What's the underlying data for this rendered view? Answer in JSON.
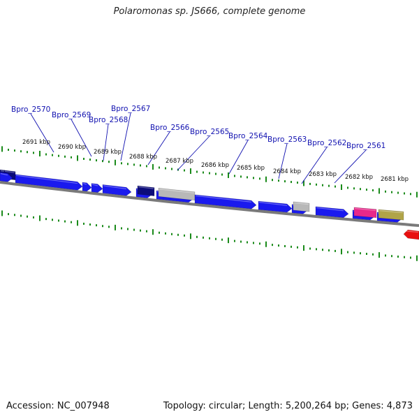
{
  "title": "Polaromonas sp. JS666, complete genome",
  "footer": {
    "accession": "Accession: NC_007948",
    "info": "Topology: circular; Length: 5,200,264 bp; Genes: 4,873"
  },
  "kbp_labels": [
    "2691 kbp",
    "2690 kbp",
    "2689 kbp",
    "2688 kbp",
    "2687 kbp",
    "2686 kbp",
    "2685 kbp",
    "2684 kbp",
    "2683 kbp",
    "2682 kbp",
    "2681 kbp"
  ],
  "gene_labels": [
    "Bpro_2570",
    "Bpro_2569",
    "Bpro_2568",
    "Bpro_2567",
    "Bpro_2566",
    "Bpro_2565",
    "Bpro_2564",
    "Bpro_2563",
    "Bpro_2562",
    "Bpro_2561"
  ],
  "colors": {
    "cds": "#1a1aee",
    "cds_dark": "#0c0c7a",
    "gray": "#b8b8b8",
    "pink": "#e8288a",
    "olive": "#b0a448",
    "red": "#e81010",
    "ticks": "#1a8a1a",
    "backbone": "#7a7a7a",
    "label": "#1010b0"
  }
}
